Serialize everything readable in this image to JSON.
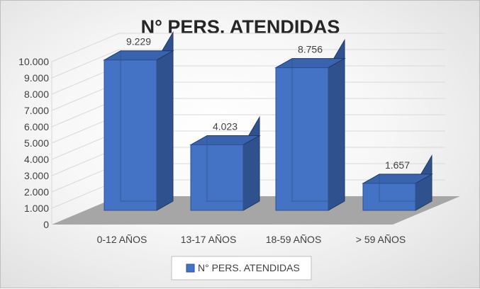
{
  "chart_data": {
    "type": "bar",
    "title": "N° PERS. ATENDIDAS",
    "categories": [
      "0-12 AÑOS",
      "13-17 AÑOS",
      "18-59 AÑOS",
      "> 59 AÑOS"
    ],
    "series": [
      {
        "name": "N° PERS. ATENDIDAS",
        "values": [
          9229,
          4023,
          8756,
          1657
        ],
        "labels": [
          "9.229",
          "4.023",
          "8.756",
          "1.657"
        ],
        "color": "#4472c4"
      }
    ],
    "y_ticks": [
      "0",
      "1.000",
      "2.000",
      "3.000",
      "4.000",
      "5.000",
      "6.000",
      "7.000",
      "8.000",
      "9.000",
      "10.000"
    ],
    "ylim": [
      0,
      10000
    ],
    "grid": true,
    "three_d": true,
    "legend_position": "bottom",
    "colors": {
      "bar_front": "#4472c4",
      "bar_side": "#2f528f",
      "bar_top": "#3a63ad",
      "floor": "#a6a6a6",
      "gridline": "#d9d9d9"
    }
  }
}
